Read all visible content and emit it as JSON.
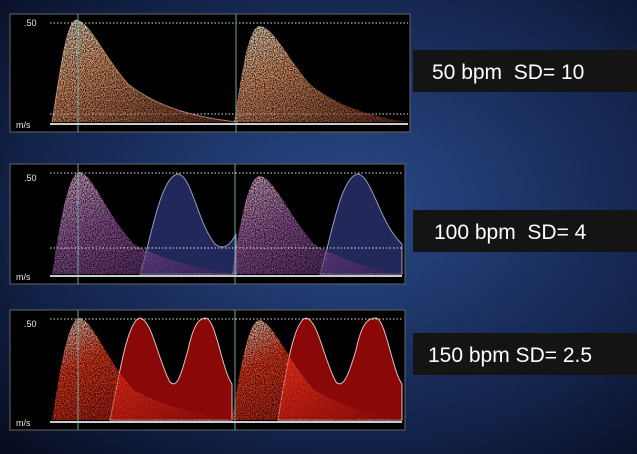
{
  "panels": [
    {
      "scale_label": ".50",
      "unit_label": "m/s",
      "caption": "50 bpm  SD= 10"
    },
    {
      "scale_label": ".50",
      "unit_label": "m/s",
      "caption": "100 bpm  SD= 4"
    },
    {
      "scale_label": ".50",
      "unit_label": "m/s",
      "caption": "150 bpm SD= 2.5"
    }
  ]
}
